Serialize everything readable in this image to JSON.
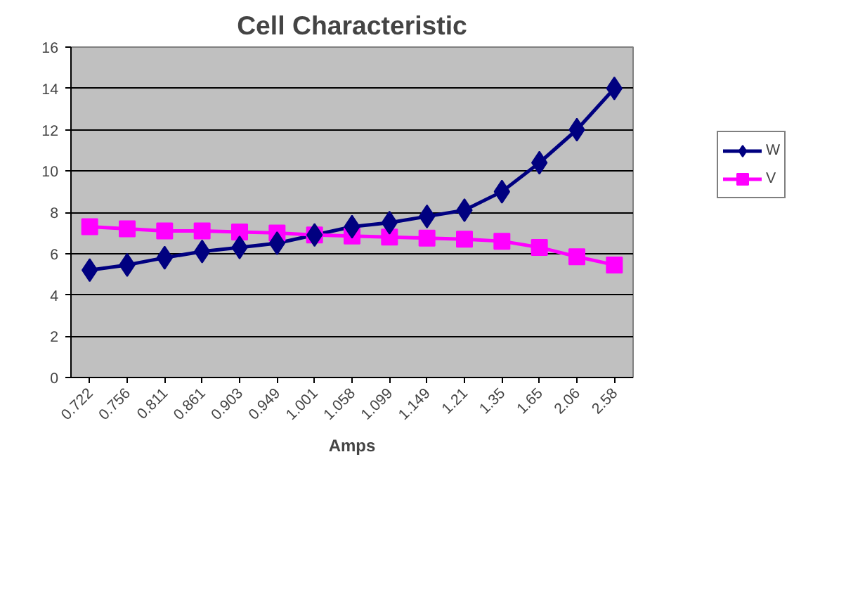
{
  "chart_data": {
    "type": "line",
    "title": "Cell Characteristic",
    "xlabel": "Amps",
    "categories": [
      "0.722",
      "0.756",
      "0.811",
      "0.861",
      "0.903",
      "0.949",
      "1.001",
      "1.058",
      "1.099",
      "1.149",
      "1.21",
      "1.35",
      "1.65",
      "2.06",
      "2.58"
    ],
    "series": [
      {
        "name": "W",
        "color": "#000080",
        "marker": "diamond",
        "values": [
          5.2,
          5.45,
          5.8,
          6.1,
          6.3,
          6.5,
          6.9,
          7.3,
          7.5,
          7.8,
          8.1,
          9.0,
          10.4,
          12.0,
          14.0
        ]
      },
      {
        "name": "V",
        "color": "#ff00ff",
        "marker": "square",
        "values": [
          7.3,
          7.2,
          7.1,
          7.1,
          7.05,
          7.0,
          6.9,
          6.85,
          6.8,
          6.75,
          6.7,
          6.6,
          6.3,
          5.85,
          5.45
        ]
      }
    ],
    "ylim": [
      0,
      16
    ],
    "yticks": [
      0,
      2,
      4,
      6,
      8,
      10,
      12,
      14,
      16
    ],
    "grid": "y",
    "legend": "right",
    "line_style": "solid"
  }
}
